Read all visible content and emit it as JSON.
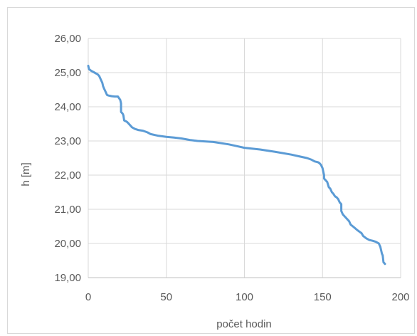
{
  "chart_data": {
    "type": "line",
    "title": "",
    "xlabel": "počet hodin",
    "ylabel": "h [m]",
    "xlim": [
      0,
      200
    ],
    "ylim": [
      19,
      26
    ],
    "xticks": [
      0,
      50,
      100,
      150,
      200
    ],
    "xtick_labels": [
      "0",
      "50",
      "100",
      "150",
      "200"
    ],
    "yticks": [
      19,
      20,
      21,
      22,
      23,
      24,
      25,
      26
    ],
    "ytick_labels": [
      "19,00",
      "20,00",
      "21,00",
      "22,00",
      "23,00",
      "24,00",
      "25,00",
      "26,00"
    ],
    "grid": true,
    "legend": "none",
    "line_color": "#5b9bd5",
    "series": [
      {
        "x": [
          0,
          0.5,
          2,
          4,
          6,
          7,
          8,
          9,
          9.5,
          10,
          10.5,
          11,
          11.5,
          12,
          13,
          14,
          15,
          17,
          19,
          20.5,
          21,
          21,
          22,
          22.5,
          23,
          24,
          25,
          26,
          27,
          28,
          30,
          32,
          35,
          38,
          40,
          45,
          50,
          55,
          60,
          65,
          70,
          80,
          90,
          95,
          100,
          110,
          120,
          130,
          135,
          140,
          143,
          145,
          147,
          148,
          149,
          150,
          150.5,
          151,
          151,
          152,
          153,
          154,
          155,
          156,
          157,
          158,
          159,
          160,
          161,
          162,
          162,
          163,
          164,
          165,
          166,
          167,
          168,
          170,
          172,
          175,
          176,
          178,
          180,
          182,
          184,
          186,
          187,
          187.5,
          188,
          188.5,
          189,
          190
        ],
        "y": [
          25.2,
          25.1,
          25.05,
          25.0,
          24.95,
          24.9,
          24.8,
          24.7,
          24.6,
          24.55,
          24.5,
          24.45,
          24.4,
          24.35,
          24.33,
          24.32,
          24.31,
          24.3,
          24.3,
          24.2,
          24.1,
          23.85,
          23.8,
          23.75,
          23.6,
          23.58,
          23.55,
          23.5,
          23.45,
          23.4,
          23.35,
          23.32,
          23.3,
          23.25,
          23.2,
          23.15,
          23.12,
          23.1,
          23.07,
          23.03,
          23.0,
          22.97,
          22.9,
          22.85,
          22.8,
          22.75,
          22.68,
          22.6,
          22.55,
          22.5,
          22.45,
          22.4,
          22.38,
          22.35,
          22.3,
          22.2,
          22.1,
          22.0,
          21.9,
          21.85,
          21.8,
          21.65,
          21.6,
          21.5,
          21.45,
          21.38,
          21.35,
          21.3,
          21.2,
          21.15,
          20.95,
          20.85,
          20.8,
          20.75,
          20.7,
          20.65,
          20.55,
          20.48,
          20.4,
          20.3,
          20.22,
          20.15,
          20.1,
          20.08,
          20.05,
          20.0,
          19.9,
          19.8,
          19.7,
          19.65,
          19.45,
          19.4
        ]
      }
    ]
  }
}
